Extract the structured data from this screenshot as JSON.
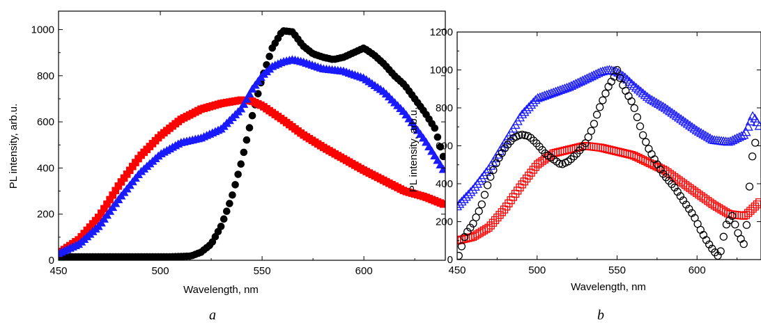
{
  "figure": {
    "panel_labels": [
      "a",
      "b"
    ]
  },
  "colors": {
    "black": "#000000",
    "red": "#ff0000",
    "blue": "#1a1aff"
  },
  "chart_data": [
    {
      "type": "scatter",
      "panel": "a",
      "title": "",
      "xlabel": "Wavelength, nm",
      "ylabel": "PL intensity, arb.u.",
      "xlim": [
        450,
        640
      ],
      "ylim": [
        0,
        1080
      ],
      "xticks": [
        450,
        500,
        550,
        600
      ],
      "yticks": [
        0,
        200,
        400,
        600,
        800,
        1000
      ],
      "marker_style": "filled",
      "series": [
        {
          "color": "black",
          "marker": "circle",
          "x": [
            450,
            470,
            490,
            505,
            515,
            520,
            525,
            530,
            535,
            540,
            545,
            550,
            555,
            560,
            565,
            570,
            575,
            580,
            585,
            590,
            595,
            600,
            605,
            610,
            615,
            620,
            625,
            630,
            635,
            640
          ],
          "y": [
            15,
            15,
            15,
            15,
            18,
            35,
            70,
            150,
            270,
            430,
            620,
            790,
            920,
            995,
            990,
            930,
            895,
            880,
            870,
            880,
            900,
            920,
            890,
            850,
            800,
            760,
            700,
            640,
            570,
            420
          ]
        },
        {
          "color": "red",
          "marker": "square",
          "x": [
            450,
            460,
            470,
            480,
            490,
            500,
            510,
            520,
            530,
            540,
            545,
            550,
            560,
            570,
            580,
            590,
            600,
            610,
            620,
            630,
            640
          ],
          "y": [
            30,
            90,
            190,
            330,
            450,
            540,
            610,
            655,
            680,
            695,
            690,
            670,
            610,
            545,
            490,
            440,
            390,
            345,
            300,
            275,
            240
          ]
        },
        {
          "color": "blue",
          "marker": "triangle",
          "x": [
            450,
            460,
            470,
            480,
            490,
            500,
            510,
            520,
            530,
            540,
            545,
            550,
            555,
            560,
            565,
            570,
            580,
            590,
            600,
            610,
            620,
            630,
            640
          ],
          "y": [
            30,
            70,
            150,
            270,
            380,
            460,
            510,
            530,
            570,
            660,
            740,
            800,
            840,
            860,
            870,
            860,
            830,
            820,
            790,
            730,
            640,
            520,
            380
          ]
        }
      ]
    },
    {
      "type": "scatter",
      "panel": "b",
      "title": "",
      "xlabel": "Wavelength, nm",
      "ylabel": "PL intensity, arb.u.",
      "xlim": [
        450,
        640
      ],
      "ylim": [
        0,
        1200
      ],
      "xticks": [
        450,
        500,
        550,
        600
      ],
      "yticks": [
        0,
        200,
        400,
        600,
        800,
        1000,
        1200
      ],
      "marker_style": "open",
      "series": [
        {
          "color": "blue",
          "marker": "triangle",
          "x": [
            450,
            460,
            470,
            480,
            490,
            500,
            510,
            520,
            530,
            540,
            545,
            550,
            555,
            560,
            570,
            580,
            590,
            600,
            610,
            620,
            630,
            635,
            640
          ],
          "y": [
            280,
            370,
            480,
            620,
            760,
            850,
            880,
            910,
            950,
            990,
            1000,
            990,
            960,
            920,
            850,
            800,
            740,
            680,
            630,
            620,
            660,
            760,
            690
          ]
        },
        {
          "color": "red",
          "marker": "square",
          "x": [
            450,
            460,
            470,
            480,
            490,
            500,
            510,
            520,
            530,
            540,
            550,
            560,
            570,
            580,
            590,
            600,
            610,
            620,
            630,
            640
          ],
          "y": [
            100,
            120,
            170,
            270,
            390,
            500,
            560,
            580,
            600,
            590,
            570,
            550,
            510,
            470,
            410,
            350,
            290,
            240,
            230,
            310
          ]
        },
        {
          "color": "black",
          "marker": "circle",
          "x": [
            451,
            455,
            460,
            465,
            470,
            475,
            480,
            485,
            490,
            495,
            500,
            505,
            510,
            515,
            520,
            525,
            530,
            535,
            538,
            542,
            545,
            548,
            550,
            553,
            556,
            560,
            563,
            566,
            570,
            574,
            578,
            582,
            586,
            590,
            594,
            598,
            602,
            606,
            610,
            614,
            618,
            622,
            626,
            630,
            634,
            638
          ],
          "y": [
            20,
            130,
            190,
            280,
            420,
            520,
            590,
            640,
            660,
            650,
            610,
            560,
            530,
            500,
            520,
            560,
            610,
            700,
            780,
            860,
            920,
            960,
            1000,
            930,
            880,
            820,
            740,
            660,
            580,
            520,
            460,
            420,
            380,
            330,
            280,
            230,
            160,
            100,
            50,
            10,
            180,
            230,
            130,
            70,
            520,
            680
          ]
        }
      ]
    }
  ]
}
